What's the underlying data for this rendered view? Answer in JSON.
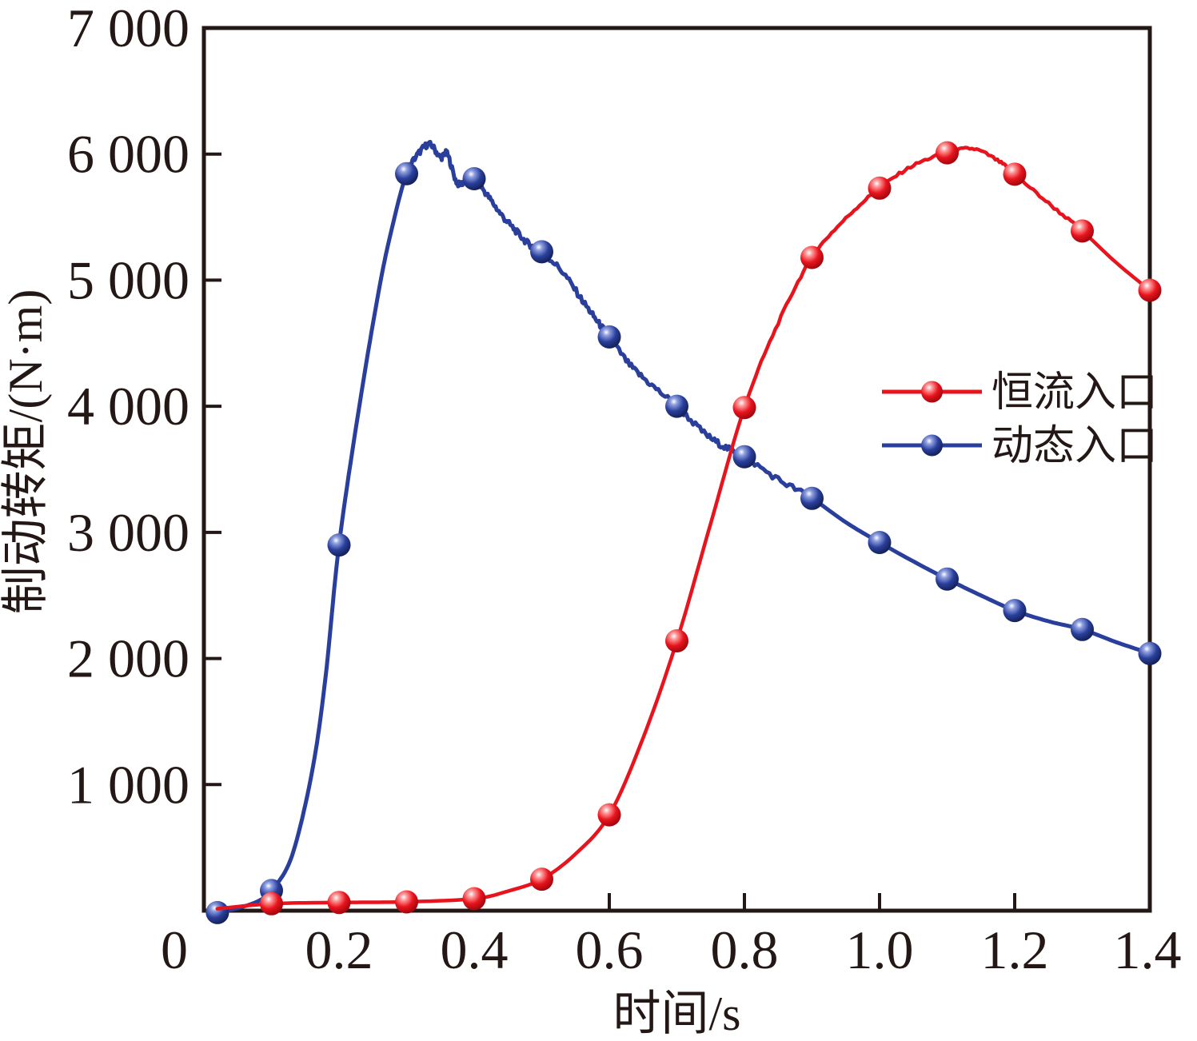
{
  "figure": {
    "background": "#ffffff",
    "frame_color": "#231815",
    "text_color": "#231815"
  },
  "chart_data": {
    "type": "line",
    "title": "",
    "xlabel": "时间/s",
    "ylabel": "制动转矩/(N·m)",
    "xlim": [
      0,
      1.4
    ],
    "ylim": [
      0,
      7000
    ],
    "grid": false,
    "origin_label": "0",
    "x_ticks": {
      "values": [
        0.2,
        0.4,
        0.6,
        0.8,
        1.0,
        1.2,
        1.4
      ],
      "labels": [
        "0.2",
        "0.4",
        "0.6",
        "0.8",
        "1.0",
        "1.2",
        "1.4"
      ]
    },
    "y_ticks": {
      "values": [
        1000,
        2000,
        3000,
        4000,
        5000,
        6000,
        7000
      ],
      "labels": [
        "1 000",
        "2 000",
        "3 000",
        "4 000",
        "5 000",
        "6 000",
        "7 000"
      ]
    },
    "legend": {
      "position": "inside-right",
      "entries": [
        {
          "label": "恒流入口",
          "series_index": 1
        },
        {
          "label": "动态入口",
          "series_index": 0
        }
      ]
    },
    "series": [
      {
        "name": "动态入口",
        "id": "dynamic-inlet",
        "color": "#2A3F9C",
        "color_dark": "#131F55",
        "color_light": "#8FA0E0",
        "marker": "ball",
        "points": [
          [
            0.02,
            -15
          ],
          [
            0.1,
            160
          ],
          [
            0.2,
            2900
          ],
          [
            0.3,
            5845
          ],
          [
            0.4,
            5805
          ],
          [
            0.5,
            5225
          ],
          [
            0.6,
            4550
          ],
          [
            0.7,
            4000
          ],
          [
            0.8,
            3600
          ],
          [
            0.9,
            3270
          ],
          [
            1.0,
            2920
          ],
          [
            1.1,
            2630
          ],
          [
            1.2,
            2380
          ],
          [
            1.3,
            2230
          ],
          [
            1.4,
            2040
          ]
        ],
        "curve": [
          [
            0.02,
            -15
          ],
          [
            0.05,
            20
          ],
          [
            0.08,
            75
          ],
          [
            0.1,
            160
          ],
          [
            0.13,
            430
          ],
          [
            0.16,
            1100
          ],
          [
            0.18,
            1850
          ],
          [
            0.2,
            2900
          ],
          [
            0.23,
            4000
          ],
          [
            0.26,
            4950
          ],
          [
            0.28,
            5450
          ],
          [
            0.3,
            5845
          ],
          [
            0.32,
            6020
          ],
          [
            0.335,
            6075
          ],
          [
            0.35,
            5975
          ],
          [
            0.36,
            6000
          ],
          [
            0.375,
            5770
          ],
          [
            0.39,
            5800
          ],
          [
            0.4,
            5805
          ],
          [
            0.42,
            5670
          ],
          [
            0.44,
            5520
          ],
          [
            0.46,
            5400
          ],
          [
            0.48,
            5290
          ],
          [
            0.5,
            5225
          ],
          [
            0.53,
            5070
          ],
          [
            0.56,
            4840
          ],
          [
            0.58,
            4690
          ],
          [
            0.6,
            4550
          ],
          [
            0.63,
            4330
          ],
          [
            0.66,
            4180
          ],
          [
            0.7,
            4000
          ],
          [
            0.74,
            3790
          ],
          [
            0.77,
            3680
          ],
          [
            0.8,
            3600
          ],
          [
            0.85,
            3420
          ],
          [
            0.9,
            3270
          ],
          [
            0.95,
            3080
          ],
          [
            1.0,
            2920
          ],
          [
            1.05,
            2770
          ],
          [
            1.1,
            2630
          ],
          [
            1.15,
            2500
          ],
          [
            1.2,
            2380
          ],
          [
            1.25,
            2295
          ],
          [
            1.3,
            2230
          ],
          [
            1.35,
            2130
          ],
          [
            1.4,
            2040
          ]
        ],
        "noise": {
          "from": 0.3,
          "to": 0.9,
          "amplitude": 24
        }
      },
      {
        "name": "恒流入口",
        "id": "constant-flow-inlet",
        "color": "#E8141D",
        "color_dark": "#9E050D",
        "color_light": "#FF9A9A",
        "marker": "ball",
        "points": [
          [
            0.1,
            55
          ],
          [
            0.2,
            65
          ],
          [
            0.3,
            70
          ],
          [
            0.4,
            95
          ],
          [
            0.5,
            250
          ],
          [
            0.6,
            760
          ],
          [
            0.7,
            2140
          ],
          [
            0.8,
            3990
          ],
          [
            0.9,
            5180
          ],
          [
            1.0,
            5730
          ],
          [
            1.1,
            6010
          ],
          [
            1.2,
            5840
          ],
          [
            1.3,
            5390
          ],
          [
            1.4,
            4920
          ]
        ],
        "curve": [
          [
            0.02,
            15
          ],
          [
            0.1,
            55
          ],
          [
            0.2,
            65
          ],
          [
            0.3,
            70
          ],
          [
            0.4,
            95
          ],
          [
            0.45,
            155
          ],
          [
            0.5,
            250
          ],
          [
            0.55,
            450
          ],
          [
            0.6,
            760
          ],
          [
            0.65,
            1370
          ],
          [
            0.7,
            2140
          ],
          [
            0.75,
            3070
          ],
          [
            0.8,
            3990
          ],
          [
            0.85,
            4660
          ],
          [
            0.9,
            5180
          ],
          [
            0.95,
            5490
          ],
          [
            1.0,
            5730
          ],
          [
            1.05,
            5910
          ],
          [
            1.1,
            6010
          ],
          [
            1.14,
            6040
          ],
          [
            1.18,
            5930
          ],
          [
            1.2,
            5840
          ],
          [
            1.25,
            5610
          ],
          [
            1.3,
            5390
          ],
          [
            1.35,
            5140
          ],
          [
            1.4,
            4920
          ]
        ],
        "noise": {
          "from": 0.82,
          "to": 1.3,
          "amplitude": 11
        }
      }
    ]
  }
}
